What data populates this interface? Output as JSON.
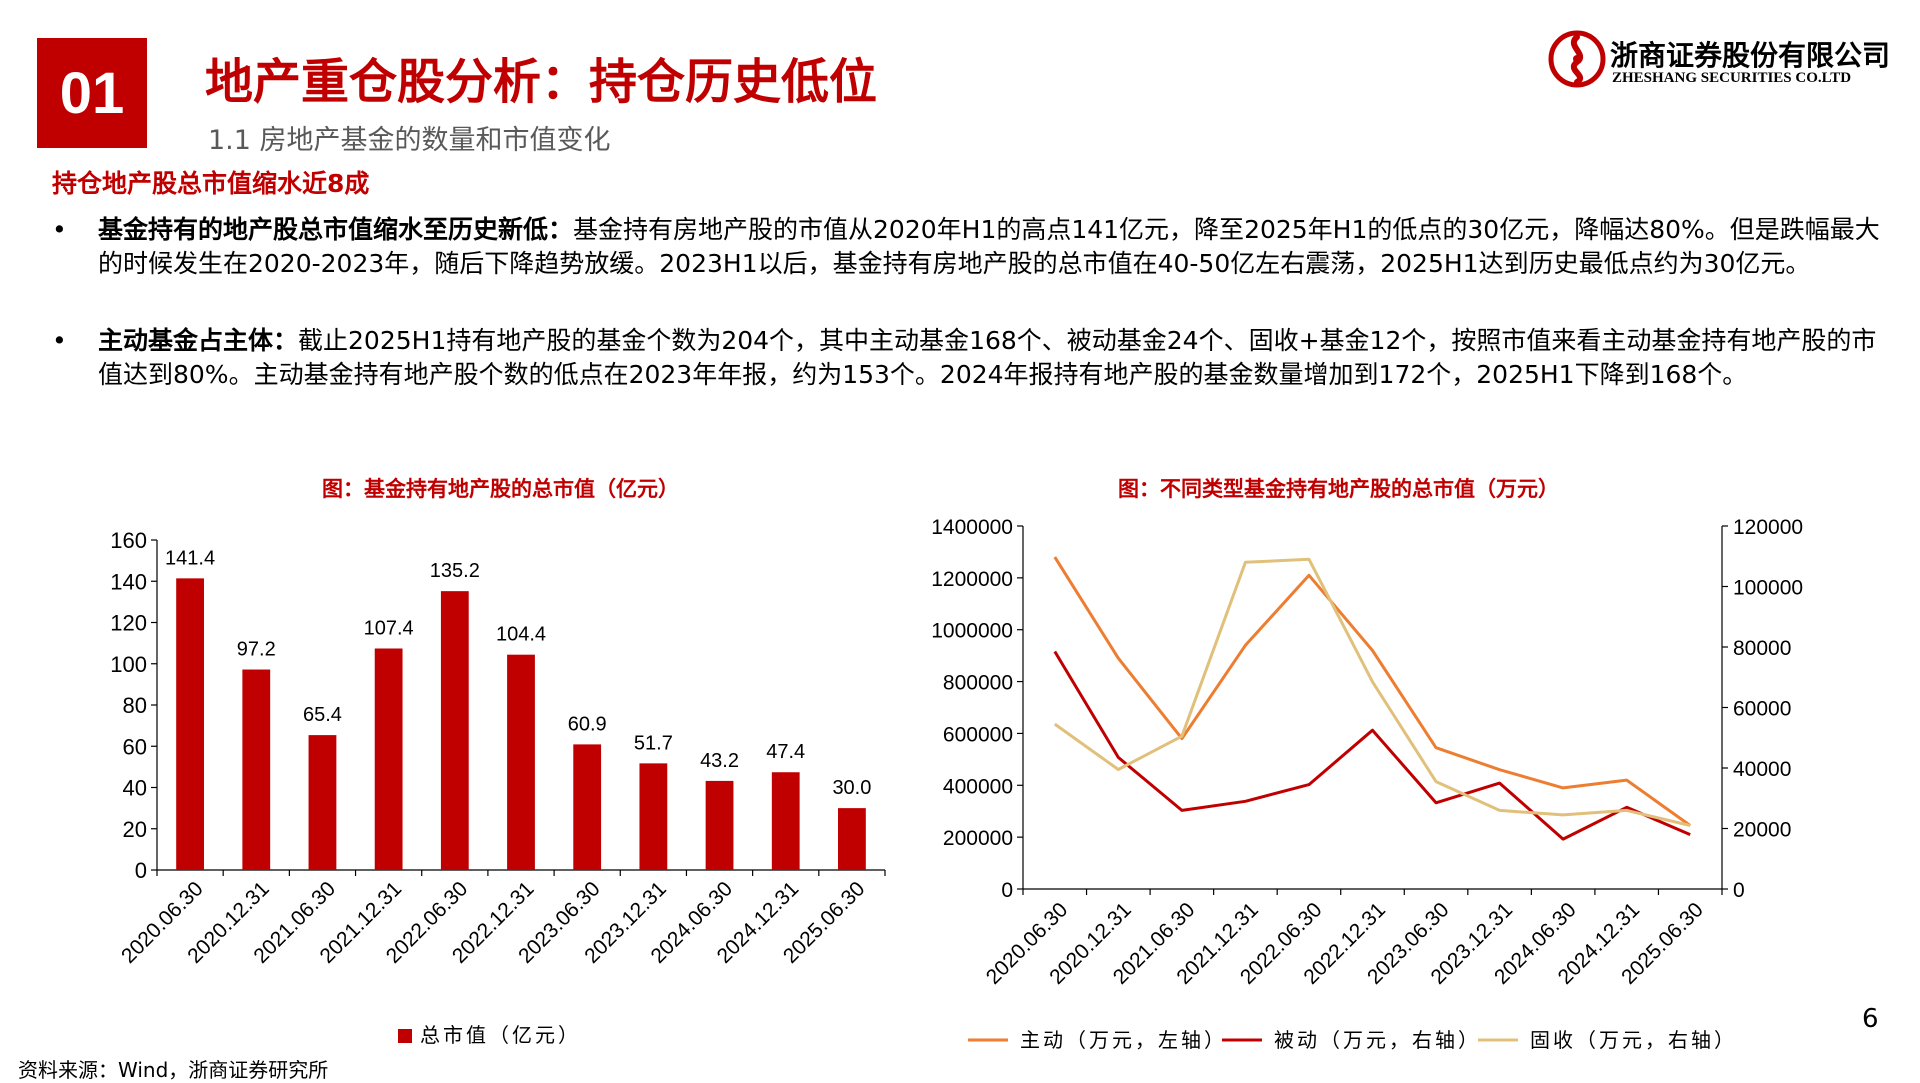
{
  "header": {
    "section_number": "01",
    "title": "地产重仓股分析：持仓历史低位",
    "subtitle": "1.1 房地产基金的数量和市值变化",
    "logo_cn": "浙商证券股份有限公司",
    "logo_en": "ZHESHANG SECURITIES CO.LTD",
    "brand_color": "#c00000"
  },
  "content": {
    "heading": "持仓地产股总市值缩水近8成",
    "bullet_symbol": "•",
    "bullets": [
      {
        "bold": "基金持有的地产股总市值缩水至历史新低：",
        "text": "基金持有房地产股的市值从2020年H1的高点141亿元，降至2025年H1的低点的30亿元，降幅达80%。但是跌幅最大的时候发生在2020-2023年，随后下降趋势放缓。2023H1以后，基金持有房地产股的总市值在40-50亿左右震荡，2025H1达到历史最低点约为30亿元。"
      },
      {
        "bold": "主动基金占主体：",
        "text": "截止2025H1持有地产股的基金个数为204个，其中主动基金168个、被动基金24个、固收+基金12个，按照市值来看主动基金持有地产股的市值达到80%。主动基金持有地产股个数的低点在2023年年报，约为153个。2024年报持有地产股的基金数量增加到172个，2025H1下降到168个。"
      }
    ]
  },
  "chart_data": [
    {
      "type": "bar",
      "title": "图：基金持有地产股的总市值（亿元）",
      "categories": [
        "2020.06.30",
        "2020.12.31",
        "2021.06.30",
        "2021.12.31",
        "2022.06.30",
        "2022.12.31",
        "2023.06.30",
        "2023.12.31",
        "2024.06.30",
        "2024.12.31",
        "2025.06.30"
      ],
      "series": [
        {
          "name": "总市值（亿元）",
          "color": "#c00000",
          "values": [
            141.4,
            97.2,
            65.4,
            107.4,
            135.2,
            104.4,
            60.9,
            51.7,
            43.2,
            47.4,
            30.0
          ],
          "labels": [
            "141.4",
            "97.2",
            "65.4",
            "107.4",
            "135.2",
            "104.4",
            "60.9",
            "51.7",
            "43.2",
            "47.4",
            "30.0"
          ]
        }
      ],
      "ylim": [
        0,
        160
      ],
      "yticks": [
        "0",
        "20",
        "40",
        "60",
        "80",
        "100",
        "120",
        "140",
        "160"
      ],
      "legend": "bottom",
      "xlabel": "",
      "ylabel": ""
    },
    {
      "type": "line",
      "title": "图：不同类型基金持有地产股的总市值（万元）",
      "categories": [
        "2020.06.30",
        "2020.12.31",
        "2021.06.30",
        "2021.12.31",
        "2022.06.30",
        "2022.12.31",
        "2023.06.30",
        "2023.12.31",
        "2024.06.30",
        "2024.12.31",
        "2025.06.30"
      ],
      "ylim_left": [
        0,
        1400000
      ],
      "yticks_left": [
        "0",
        "200000",
        "400000",
        "600000",
        "800000",
        "1000000",
        "1200000",
        "1400000"
      ],
      "ylim_right": [
        0,
        120000
      ],
      "yticks_right": [
        "0",
        "20000",
        "40000",
        "60000",
        "80000",
        "100000",
        "120000"
      ],
      "series": [
        {
          "name": "主动（万元，左轴）",
          "axis": "left",
          "color": "#ed7d31",
          "values": [
            1280000,
            890000,
            580000,
            940000,
            1210000,
            920000,
            545000,
            460000,
            390000,
            420000,
            245000
          ]
        },
        {
          "name": "被动（万元，右轴）",
          "axis": "right",
          "color": "#c00000",
          "values": [
            78500,
            43500,
            26000,
            29000,
            34500,
            52500,
            28500,
            35000,
            16500,
            27000,
            18000
          ]
        },
        {
          "name": "固收（万元，右轴）",
          "axis": "right",
          "color": "#e0c07a",
          "values": [
            54500,
            39500,
            50500,
            108000,
            109000,
            68500,
            35500,
            26000,
            24500,
            26000,
            21000
          ]
        }
      ],
      "legend": "bottom"
    }
  ],
  "footer": {
    "source": "资料来源：Wind，浙商证券研究所",
    "page_number": "6"
  }
}
